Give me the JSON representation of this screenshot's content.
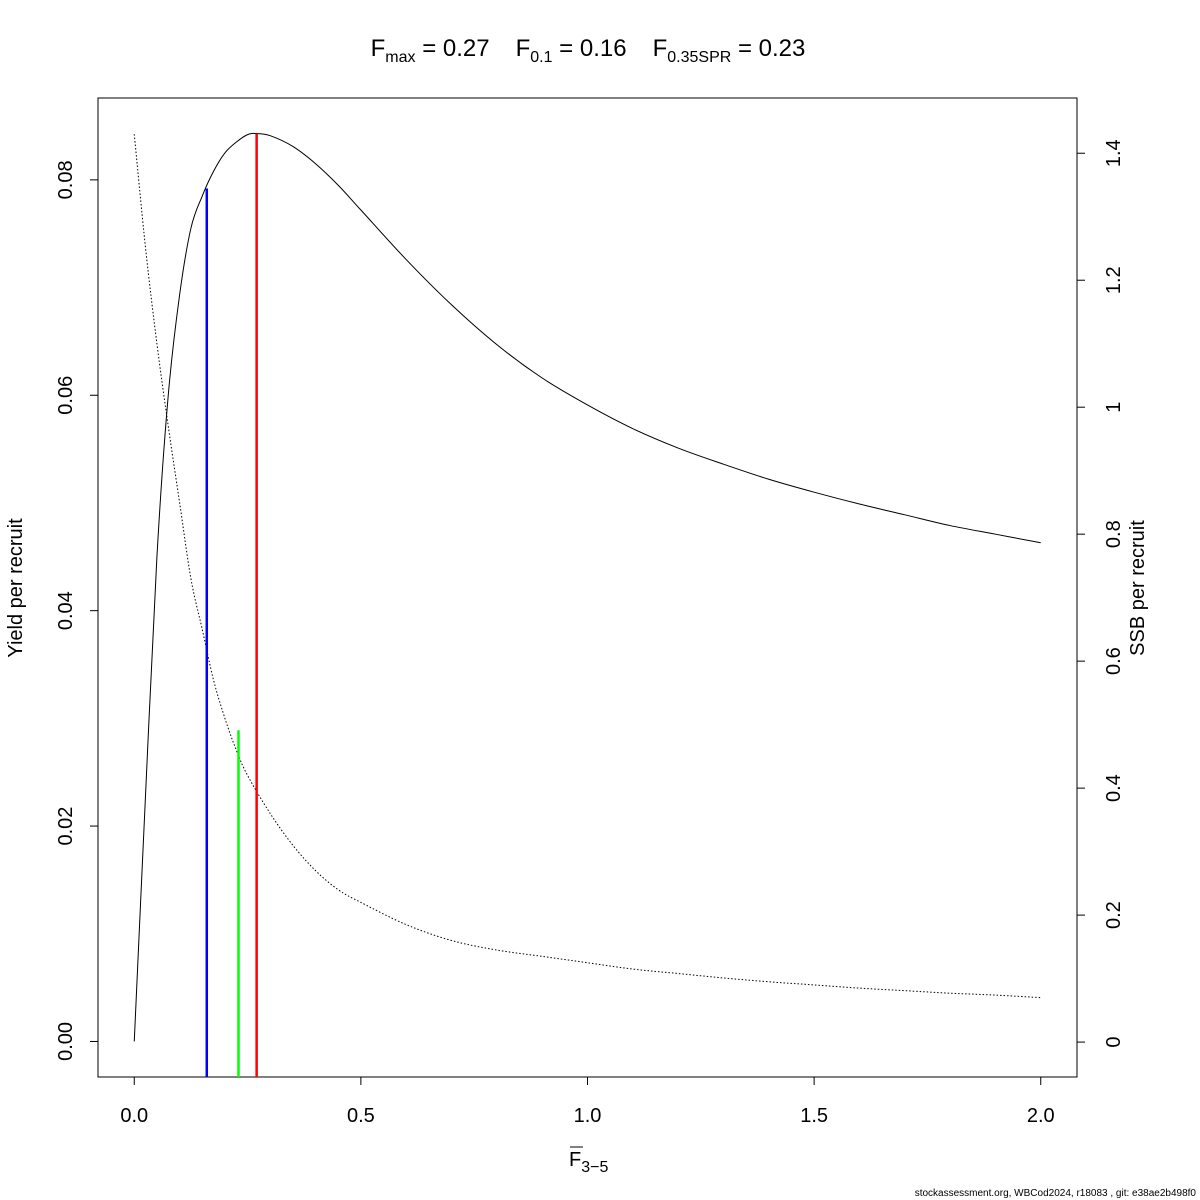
{
  "chart_data": {
    "type": "line",
    "title_parts": [
      {
        "main": "F",
        "sub": "max",
        "eq": " = 0.27"
      },
      {
        "main": "F",
        "sub": "0.1",
        "eq": " = 0.16"
      },
      {
        "main": "F",
        "sub": "0.35SPR",
        "eq": " = 0.23"
      }
    ],
    "xlabel": {
      "main": "F",
      "sub": "3−5"
    },
    "ylabel": "Yield per recruit",
    "y2label": "SSB per recruit",
    "xlim": [
      -0.08,
      2.08
    ],
    "ylim": [
      -0.0033,
      0.0876
    ],
    "y2lim": [
      -0.055,
      1.487
    ],
    "x_ticks": [
      0.0,
      0.5,
      1.0,
      1.5,
      2.0
    ],
    "x_tick_labels": [
      "0.0",
      "0.5",
      "1.0",
      "1.5",
      "2.0"
    ],
    "y_ticks": [
      0.0,
      0.02,
      0.04,
      0.06,
      0.08
    ],
    "y_tick_labels": [
      "0.00",
      "0.02",
      "0.04",
      "0.06",
      "0.08"
    ],
    "y2_ticks": [
      0,
      0.2,
      0.4,
      0.6,
      0.8,
      1,
      1.2,
      1.4
    ],
    "y2_tick_labels": [
      "0",
      "0.2",
      "0.4",
      "0.6",
      "0.8",
      "1",
      "1.2",
      "1.4"
    ],
    "series": [
      {
        "name": "Yield per recruit",
        "axis": "left",
        "style": "solid",
        "color": "#000000",
        "x": [
          0,
          0.025,
          0.05,
          0.075,
          0.1,
          0.125,
          0.15,
          0.175,
          0.2,
          0.225,
          0.25,
          0.27,
          0.3,
          0.35,
          0.4,
          0.45,
          0.5,
          0.6,
          0.7,
          0.8,
          0.9,
          1.0,
          1.1,
          1.2,
          1.3,
          1.4,
          1.5,
          1.6,
          1.7,
          1.8,
          1.9,
          2.0
        ],
        "y": [
          0,
          0.023,
          0.045,
          0.06,
          0.0693,
          0.0755,
          0.0785,
          0.0808,
          0.0825,
          0.0835,
          0.0842,
          0.0843,
          0.0841,
          0.0831,
          0.0815,
          0.0795,
          0.0772,
          0.0726,
          0.0684,
          0.0647,
          0.0616,
          0.0591,
          0.0569,
          0.0551,
          0.0536,
          0.0522,
          0.051,
          0.0499,
          0.0489,
          0.0479,
          0.0471,
          0.0463
        ]
      },
      {
        "name": "SSB per recruit",
        "axis": "right",
        "style": "dotted",
        "color": "#000000",
        "x": [
          0,
          0.025,
          0.05,
          0.075,
          0.1,
          0.125,
          0.15,
          0.175,
          0.2,
          0.225,
          0.25,
          0.3,
          0.35,
          0.4,
          0.45,
          0.5,
          0.6,
          0.7,
          0.8,
          0.9,
          1.0,
          1.1,
          1.2,
          1.3,
          1.4,
          1.5,
          1.6,
          1.7,
          1.8,
          1.9,
          2.0
        ],
        "y": [
          1.43,
          1.25,
          1.1,
          0.97,
          0.85,
          0.73,
          0.65,
          0.57,
          0.51,
          0.46,
          0.42,
          0.36,
          0.31,
          0.27,
          0.24,
          0.22,
          0.185,
          0.16,
          0.145,
          0.135,
          0.125,
          0.115,
          0.108,
          0.101,
          0.095,
          0.09,
          0.085,
          0.081,
          0.077,
          0.074,
          0.07
        ]
      }
    ],
    "reference_lines": [
      {
        "name": "Fmax",
        "x": 0.27,
        "y_top": 0.0843,
        "color": "#ff0000"
      },
      {
        "name": "F0.1",
        "x": 0.16,
        "y_top": 0.0792,
        "color": "#0000ff"
      },
      {
        "name": "F0.35SPR",
        "x": 0.23,
        "y_top": 0.0289,
        "color": "#00ff00"
      }
    ],
    "grid": false,
    "legend": "none"
  },
  "footer": "stockassessment.org, WBCod2024, r18083 , git: e38ae2b498f0"
}
